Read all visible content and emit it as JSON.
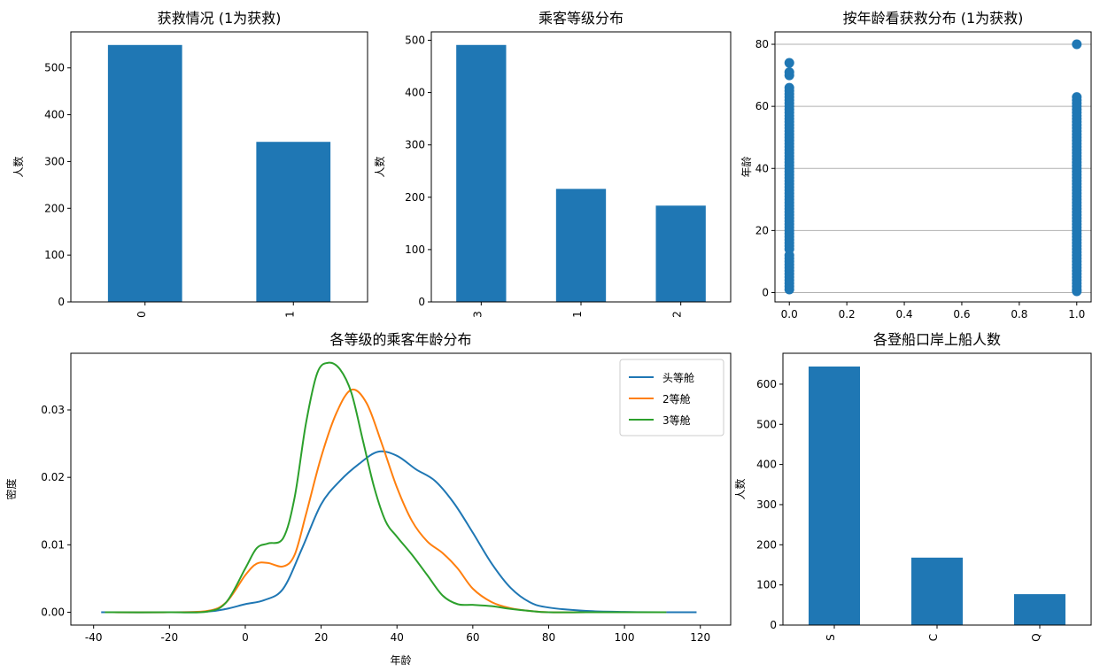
{
  "chart_data": [
    {
      "type": "bar",
      "title": "获救情况 (1为获救)",
      "xlabel": "",
      "ylabel": "人数",
      "categories": [
        "0",
        "1"
      ],
      "values": [
        549,
        342
      ],
      "ylim": [
        0,
        577
      ],
      "yticks": [
        0,
        100,
        200,
        300,
        400,
        500
      ],
      "color": "#1f77b4",
      "grid": false
    },
    {
      "type": "bar",
      "title": "乘客等级分布",
      "xlabel": "",
      "ylabel": "人数",
      "categories": [
        "3",
        "1",
        "2"
      ],
      "values": [
        491,
        216,
        184
      ],
      "ylim": [
        0,
        516
      ],
      "yticks": [
        0,
        100,
        200,
        300,
        400,
        500
      ],
      "color": "#1f77b4",
      "grid": false
    },
    {
      "type": "scatter",
      "title": "按年龄看获救分布 (1为获救)",
      "xlabel": "",
      "ylabel": "年龄",
      "xlim": [
        -0.05,
        1.05
      ],
      "ylim": [
        -3,
        84
      ],
      "xticks": [
        "0.0",
        "0.2",
        "0.4",
        "0.6",
        "0.8",
        "1.0"
      ],
      "yticks": [
        0,
        20,
        40,
        60,
        80
      ],
      "grid": "y",
      "color": "#1f77b4",
      "series": [
        {
          "x": 0,
          "y": [
            1,
            2,
            3,
            4,
            5,
            6,
            7,
            8,
            9,
            10,
            11,
            12,
            14,
            15,
            16,
            17,
            18,
            19,
            20,
            21,
            22,
            23,
            24,
            25,
            26,
            27,
            28,
            29,
            30,
            31,
            32,
            33,
            34,
            35,
            36,
            37,
            38,
            39,
            40,
            41,
            42,
            43,
            44,
            45,
            46,
            47,
            48,
            49,
            50,
            51,
            52,
            53,
            54,
            55,
            56,
            57,
            58,
            59,
            60,
            61,
            62,
            63,
            64,
            65,
            66,
            70,
            71,
            74
          ]
        },
        {
          "x": 1,
          "y": [
            0.42,
            1,
            2,
            3,
            4,
            5,
            6,
            7,
            8,
            9,
            10,
            11,
            12,
            13,
            14,
            15,
            16,
            17,
            18,
            19,
            20,
            21,
            22,
            23,
            24,
            25,
            26,
            27,
            28,
            29,
            30,
            31,
            32,
            33,
            34,
            35,
            36,
            37,
            38,
            39,
            40,
            41,
            42,
            43,
            44,
            45,
            46,
            47,
            48,
            49,
            50,
            51,
            52,
            53,
            54,
            55,
            56,
            57,
            58,
            59,
            60,
            61,
            62,
            63,
            80
          ]
        }
      ]
    },
    {
      "type": "line",
      "title": "各等级的乘客年龄分布",
      "xlabel": "年龄",
      "ylabel": "密度",
      "xlim": [
        -46,
        128
      ],
      "ylim": [
        -0.0019,
        0.0384
      ],
      "xticks": [
        -40,
        -20,
        0,
        20,
        40,
        60,
        80,
        100,
        120
      ],
      "yticks": [
        0.0,
        0.01,
        0.02,
        0.03
      ],
      "ytick_labels": [
        "0.00",
        "0.01",
        "0.02",
        "0.03"
      ],
      "legend": "top-right",
      "series": [
        {
          "name": "头等舱",
          "color": "#1f77b4",
          "x": [
            -38,
            -20,
            -10,
            -5,
            0,
            5,
            10,
            15,
            20,
            25,
            30,
            35,
            40,
            45,
            50,
            55,
            60,
            65,
            70,
            75,
            80,
            90,
            100,
            110,
            119
          ],
          "y": [
            0,
            0,
            0.0001,
            0.0005,
            0.0012,
            0.0018,
            0.0035,
            0.0095,
            0.016,
            0.0195,
            0.022,
            0.0238,
            0.0232,
            0.0212,
            0.0195,
            0.0162,
            0.0118,
            0.0072,
            0.0036,
            0.0015,
            0.0007,
            0.0002,
            5e-05,
            0,
            0
          ]
        },
        {
          "name": "2等舱",
          "color": "#ff7f0e",
          "x": [
            -37,
            -20,
            -10,
            -5,
            0,
            3,
            6,
            10,
            13,
            16,
            20,
            24,
            28,
            32,
            36,
            40,
            44,
            48,
            52,
            56,
            60,
            65,
            70,
            75,
            80,
            90,
            100,
            111
          ],
          "y": [
            0,
            0,
            0.0002,
            0.0015,
            0.0055,
            0.0072,
            0.0073,
            0.0068,
            0.0085,
            0.0145,
            0.023,
            0.0295,
            0.033,
            0.031,
            0.025,
            0.0185,
            0.0135,
            0.0105,
            0.0088,
            0.0065,
            0.0035,
            0.0015,
            0.0006,
            0.0002,
            0,
            0,
            0,
            0
          ]
        },
        {
          "name": "3等舱",
          "color": "#2ca02c",
          "x": [
            -37,
            -20,
            -10,
            -5,
            0,
            3,
            6,
            10,
            13,
            16,
            19,
            22,
            25,
            28,
            31,
            34,
            37,
            40,
            44,
            48,
            52,
            56,
            60,
            65,
            70,
            75,
            80,
            90,
            100,
            111
          ],
          "y": [
            0,
            0,
            0.0001,
            0.0015,
            0.0065,
            0.0095,
            0.0102,
            0.011,
            0.017,
            0.028,
            0.0355,
            0.037,
            0.036,
            0.0325,
            0.0255,
            0.0185,
            0.0135,
            0.0112,
            0.0085,
            0.0055,
            0.0025,
            0.0012,
            0.0011,
            0.0009,
            0.0005,
            0.0002,
            0,
            0,
            0,
            0
          ]
        }
      ]
    },
    {
      "type": "bar",
      "title": "各登船口岸上船人数",
      "xlabel": "",
      "ylabel": "人数",
      "categories": [
        "S",
        "C",
        "Q"
      ],
      "values": [
        644,
        168,
        77
      ],
      "ylim": [
        0,
        677
      ],
      "yticks": [
        0,
        100,
        200,
        300,
        400,
        500,
        600
      ],
      "color": "#1f77b4",
      "grid": false
    }
  ]
}
